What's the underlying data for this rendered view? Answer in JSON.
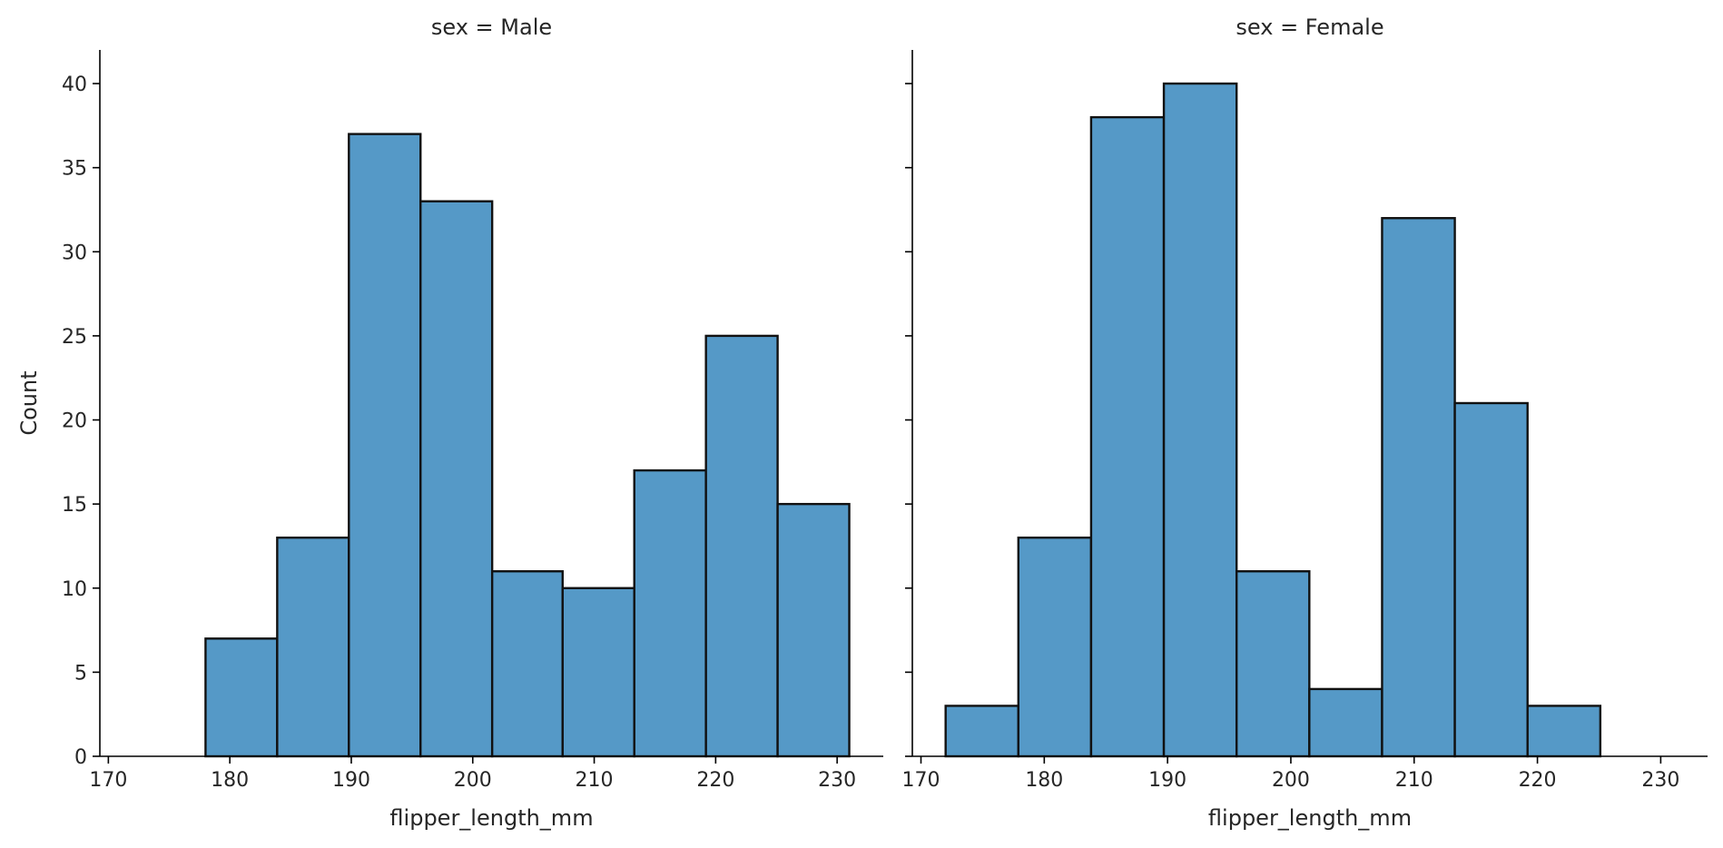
{
  "chart_data": {
    "type": "bar",
    "ylabel": "Count",
    "ylim": [
      0,
      42
    ],
    "yticks": [
      0,
      5,
      10,
      15,
      20,
      25,
      30,
      35,
      40
    ],
    "xlim": [
      169.3,
      233.8
    ],
    "xticks": [
      170,
      180,
      190,
      200,
      210,
      220,
      230
    ],
    "grid": false,
    "legend": "none",
    "bar_color": "#5599c7",
    "edge_color": "#111111",
    "panels": [
      {
        "title": "sex = Male",
        "xlabel": "flipper_length_mm",
        "bins": [
          {
            "x0": 178.0,
            "x1": 183.9,
            "count": 7
          },
          {
            "x0": 183.9,
            "x1": 189.8,
            "count": 13
          },
          {
            "x0": 189.8,
            "x1": 195.7,
            "count": 37
          },
          {
            "x0": 195.7,
            "x1": 201.6,
            "count": 33
          },
          {
            "x0": 201.6,
            "x1": 207.4,
            "count": 11
          },
          {
            "x0": 207.4,
            "x1": 213.3,
            "count": 10
          },
          {
            "x0": 213.3,
            "x1": 219.2,
            "count": 17
          },
          {
            "x0": 219.2,
            "x1": 225.1,
            "count": 25
          },
          {
            "x0": 225.1,
            "x1": 231.0,
            "count": 15
          }
        ]
      },
      {
        "title": "sex = Female",
        "xlabel": "flipper_length_mm",
        "bins": [
          {
            "x0": 172.0,
            "x1": 177.9,
            "count": 3
          },
          {
            "x0": 177.9,
            "x1": 183.8,
            "count": 13
          },
          {
            "x0": 183.8,
            "x1": 189.7,
            "count": 38
          },
          {
            "x0": 189.7,
            "x1": 195.6,
            "count": 40
          },
          {
            "x0": 195.6,
            "x1": 201.5,
            "count": 11
          },
          {
            "x0": 201.5,
            "x1": 207.4,
            "count": 4
          },
          {
            "x0": 207.4,
            "x1": 213.3,
            "count": 32
          },
          {
            "x0": 213.3,
            "x1": 219.2,
            "count": 21
          },
          {
            "x0": 219.2,
            "x1": 225.1,
            "count": 3
          }
        ]
      }
    ]
  }
}
